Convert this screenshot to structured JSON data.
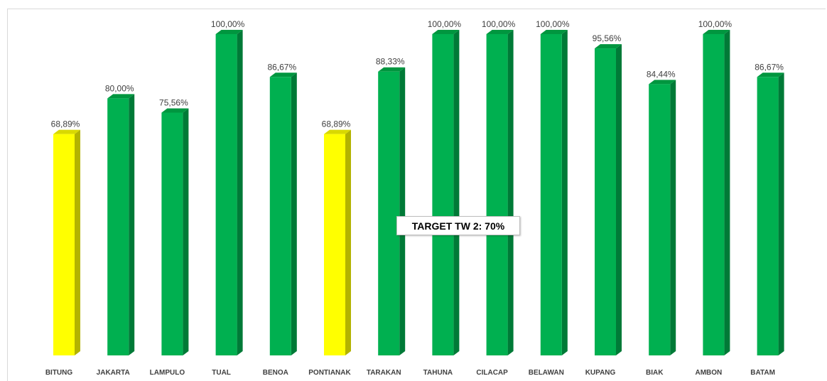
{
  "chart_data": {
    "type": "bar",
    "categories": [
      "BITUNG",
      "JAKARTA",
      "LAMPULO",
      "TUAL",
      "BENOA",
      "PONTIANAK",
      "TARAKAN",
      "TAHUNA",
      "CILACAP",
      "BELAWAN",
      "KUPANG",
      "BIAK",
      "AMBON",
      "BATAM"
    ],
    "values": [
      68.89,
      80.0,
      75.56,
      100.0,
      86.67,
      68.89,
      88.33,
      100.0,
      100.0,
      100.0,
      95.56,
      84.44,
      100.0,
      86.67
    ],
    "value_labels": [
      "68,89%",
      "80,00%",
      "75,56%",
      "100,00%",
      "86,67%",
      "68,89%",
      "88,33%",
      "100,00%",
      "100,00%",
      "100,00%",
      "95,56%",
      "84,44%",
      "100,00%",
      "86,67%"
    ],
    "target": 70,
    "ylim": [
      0,
      100
    ],
    "grid": false,
    "colors": {
      "above_target": "#00b050",
      "below_target": "#ffff00",
      "above_target_side": "#007a37",
      "below_target_side": "#b3b300",
      "above_target_top": "#00963f",
      "below_target_top": "#d9d900"
    },
    "annotation": "TARGET TW 2: 70%"
  }
}
